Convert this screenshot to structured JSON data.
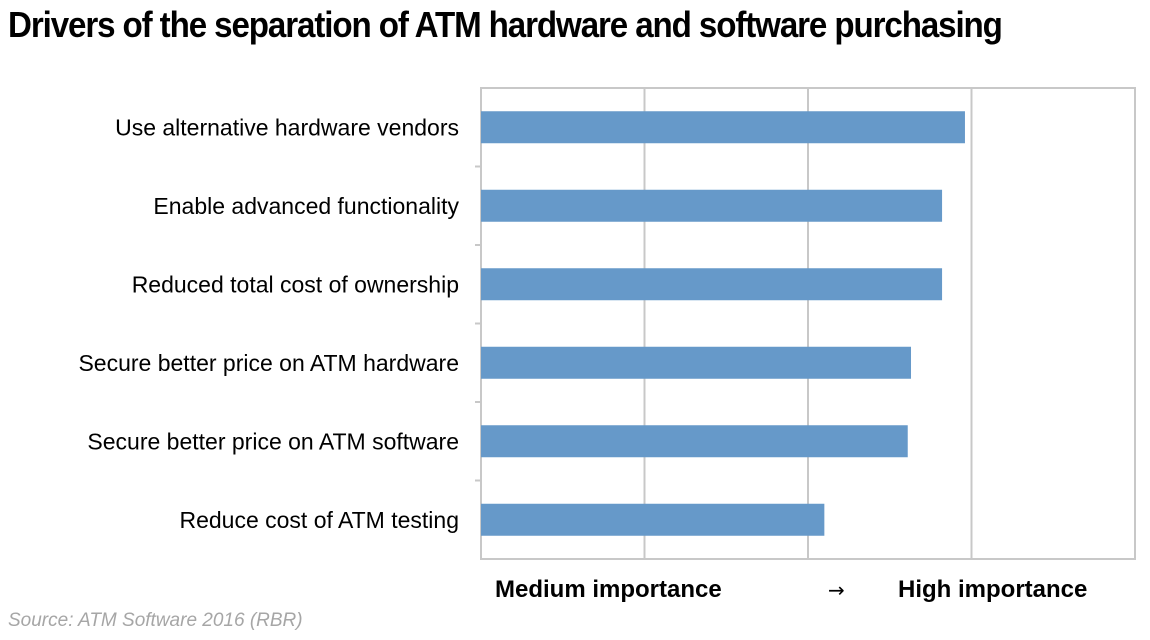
{
  "title": "Drivers of the separation of ATM hardware and software purchasing",
  "source": "Source: ATM Software 2016 (RBR)",
  "chart_data": {
    "type": "bar",
    "orientation": "horizontal",
    "categories": [
      "Use alternative hardware vendors",
      "Enable advanced functionality",
      "Reduced total cost of ownership",
      "Secure better price on ATM hardware",
      "Secure better price on ATM software",
      "Reduce cost of ATM testing"
    ],
    "values": [
      2.96,
      2.82,
      2.82,
      2.63,
      2.61,
      2.1
    ],
    "xlim": [
      0,
      4
    ],
    "x_axis_labels": {
      "low": "Medium importance",
      "arrow": "→",
      "high": "High importance"
    },
    "grid": "vertical",
    "bar_color": "#6699c9"
  }
}
